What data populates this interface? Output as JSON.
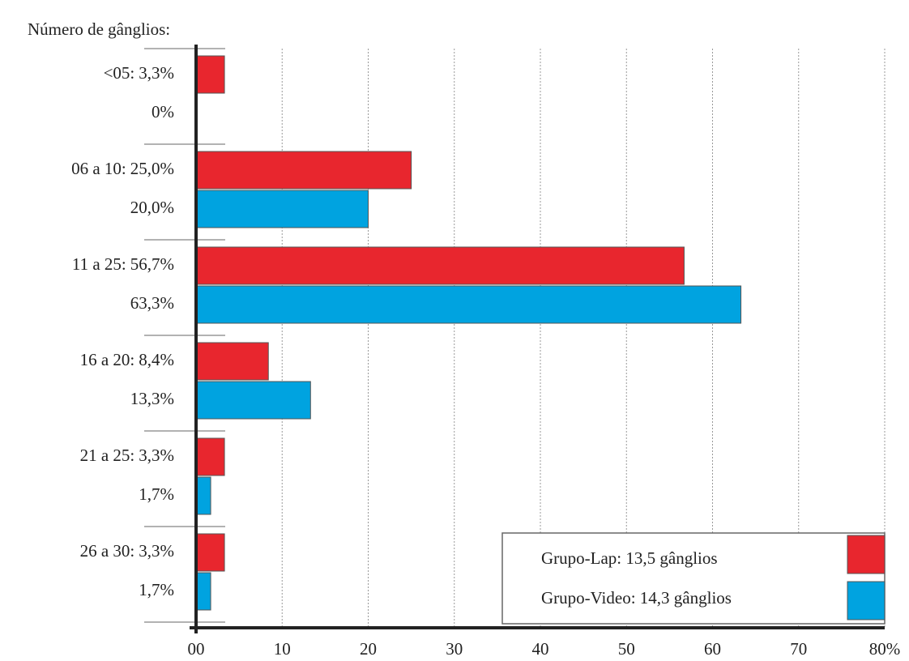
{
  "chart_data": {
    "type": "bar",
    "orientation": "horizontal",
    "ylabel": "Número de gânglios:",
    "categories": [
      "<05:",
      "06  a 10:",
      "11 a 25:",
      "16 a 20:",
      "21 a 25:",
      "26 a 30:"
    ],
    "series": [
      {
        "name": "Grupo-Lap: 13,5 gânglios",
        "color": "#e8262e",
        "values": [
          3.3,
          25.0,
          56.7,
          8.4,
          3.3,
          3.3
        ],
        "value_labels": [
          "3,3%",
          "25,0%",
          "56,7%",
          "8,4%",
          "3,3%",
          "3,3%"
        ]
      },
      {
        "name": "Grupo-Video: 14,3 gânglios",
        "color": "#00a3e0",
        "values": [
          0,
          20.0,
          63.3,
          13.3,
          1.7,
          1.7
        ],
        "value_labels": [
          "0%",
          "20,0%",
          "63,3%",
          "13,3%",
          "1,7%",
          "1,7%"
        ]
      }
    ],
    "xlim": [
      0,
      80
    ],
    "xticks": [
      {
        "value": 0,
        "label": "00"
      },
      10,
      20,
      30,
      40,
      50,
      60,
      70,
      {
        "value": 80,
        "label": "80%"
      }
    ],
    "grid": true,
    "legend": "lower right"
  }
}
